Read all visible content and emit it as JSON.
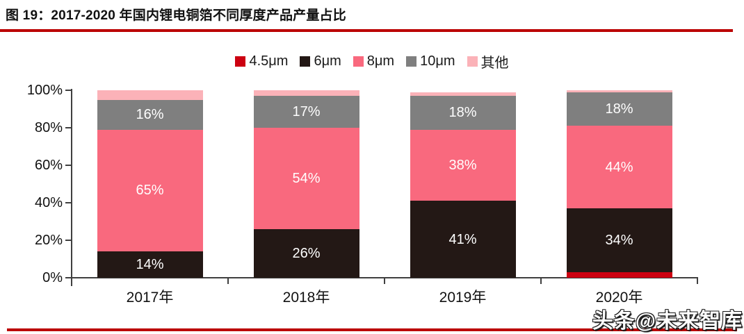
{
  "header": {
    "title": "图 19：2017-2020 年国内锂电铜箔不同厚度产品产量占比"
  },
  "footer": {
    "watermark": "头条@未来智库"
  },
  "colors": {
    "accent_rule": "#BB0000",
    "axis": "#3f3f3f",
    "segment_label_text": "#ffffff"
  },
  "chart_data": {
    "type": "bar",
    "stacked": true,
    "title": "2017-2020 年国内锂电铜箔不同厚度产品产量占比",
    "categories": [
      "2017年",
      "2018年",
      "2019年",
      "2020年"
    ],
    "series": [
      {
        "name": "4.5μm",
        "color": "#CC0011",
        "values": [
          0,
          0,
          0,
          3
        ],
        "labels": [
          null,
          null,
          null,
          null
        ]
      },
      {
        "name": "6μm",
        "color": "#231815",
        "values": [
          14,
          26,
          41,
          34
        ],
        "labels": [
          "14%",
          "26%",
          "41%",
          "34%"
        ]
      },
      {
        "name": "8μm",
        "color": "#F9697E",
        "values": [
          65,
          54,
          38,
          44
        ],
        "labels": [
          "65%",
          "54%",
          "38%",
          "44%"
        ]
      },
      {
        "name": "10μm",
        "color": "#7F7F7F",
        "values": [
          16,
          17,
          18,
          18
        ],
        "labels": [
          "16%",
          "17%",
          "18%",
          "18%"
        ]
      },
      {
        "name": "其他",
        "color": "#FBB2B8",
        "values": [
          5,
          3,
          2,
          1
        ],
        "labels": [
          null,
          null,
          null,
          null
        ]
      }
    ],
    "ylim": [
      0,
      100
    ],
    "yticks": [
      "0%",
      "20%",
      "40%",
      "60%",
      "80%",
      "100%"
    ],
    "ytick_values": [
      0,
      20,
      40,
      60,
      80,
      100
    ],
    "xlabel": "",
    "ylabel": "",
    "grid": false,
    "legend_position": "top"
  }
}
